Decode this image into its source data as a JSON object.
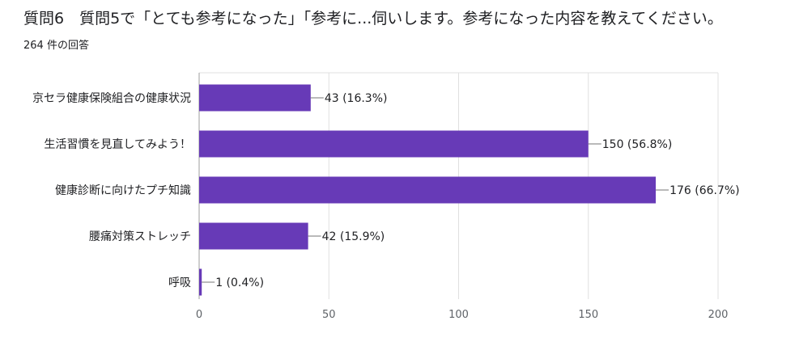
{
  "header": {
    "title": "質問6　質問5で「とても参考になった」「参考に...伺いします。参考になった内容を教えてください。",
    "response_count": "264 件の回答"
  },
  "colors": {
    "bar": "#673ab7",
    "grid": "#e0e0e0",
    "axis": "#9e9e9e"
  },
  "chart_data": {
    "type": "bar",
    "orientation": "horizontal",
    "categories": [
      "京セラ健康保険組合の健康状況",
      "生活習慣を見直してみよう！",
      "健康診断に向けたプチ知識",
      "腰痛対策ストレッチ",
      "呼吸"
    ],
    "values": [
      43,
      150,
      176,
      42,
      1
    ],
    "data_labels": [
      "43 (16.3%)",
      "150 (56.8%)",
      "176 (66.7%)",
      "42 (15.9%)",
      "1 (0.4%)"
    ],
    "xlim": [
      0,
      200
    ],
    "xticks": [
      0,
      50,
      100,
      150,
      200
    ],
    "grid": true,
    "legend": "none"
  }
}
